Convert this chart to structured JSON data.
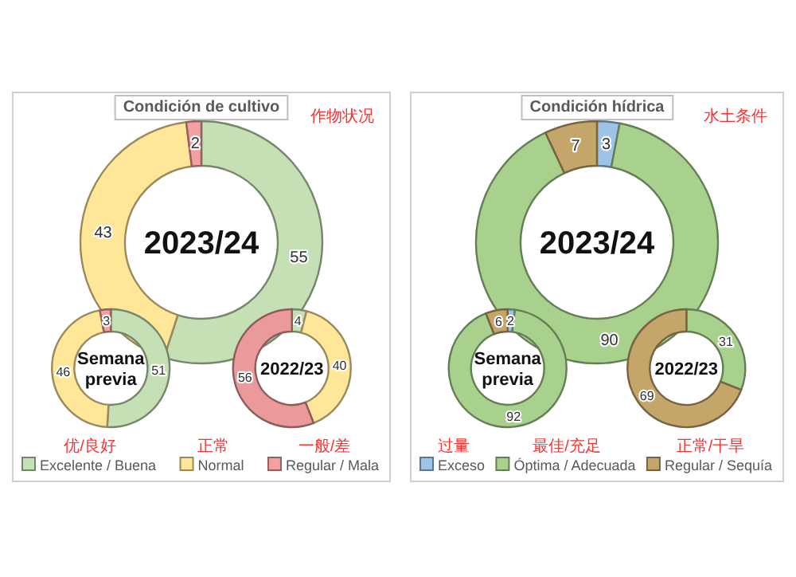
{
  "chart_data": [
    {
      "type": "donut",
      "title": "Condición de cultivo",
      "subtitle": "2023/24",
      "annotations": [
        "作物状况",
        "优/良好",
        "正常",
        "一般/差"
      ],
      "categories": [
        "Excelente / Buena",
        "Normal",
        "Regular / Mala"
      ],
      "values": [
        55,
        43,
        2
      ],
      "colors": [
        "#c5e0b4",
        "#ffe699",
        "#f4a0a0"
      ],
      "data_labels": true,
      "legend": "bottom"
    },
    {
      "type": "donut",
      "subtitle": "Semana previa",
      "categories": [
        null,
        null,
        null
      ],
      "values": [
        51,
        46,
        3
      ],
      "colors": [
        "#c5e0b4",
        "#ffe699",
        "#f4a0a0"
      ],
      "data_labels": true
    },
    {
      "type": "donut",
      "subtitle": "2022/23",
      "categories": [
        null,
        null,
        null
      ],
      "values": [
        4,
        40,
        56
      ],
      "colors": [
        "#c5e0b4",
        "#ffe699",
        "#ea9a9a"
      ],
      "data_labels": true
    },
    {
      "type": "donut",
      "title": "Condición hídrica",
      "subtitle": "2023/24",
      "annotations": [
        "水土条件",
        "过量",
        "最佳/充足",
        "正常/干旱"
      ],
      "categories": [
        "Exceso",
        "Óptima / Adecuada",
        "Regular / Sequía"
      ],
      "values": [
        3,
        90,
        7
      ],
      "colors": [
        "#9dc3e6",
        "#a9d18e",
        "#c4a56a"
      ],
      "data_labels": true,
      "legend": "bottom"
    },
    {
      "type": "donut",
      "subtitle": "Semana previa",
      "categories": [
        null,
        null,
        null
      ],
      "values": [
        2,
        92,
        6
      ],
      "colors": [
        "#9dc3e6",
        "#a9d18e",
        "#c4a56a"
      ],
      "data_labels": true
    },
    {
      "type": "donut",
      "subtitle": "2022/23",
      "categories": [
        null,
        null
      ],
      "values": [
        31,
        69
      ],
      "colors": [
        "#a9d18e",
        "#c4a56a"
      ],
      "data_labels": true
    }
  ]
}
